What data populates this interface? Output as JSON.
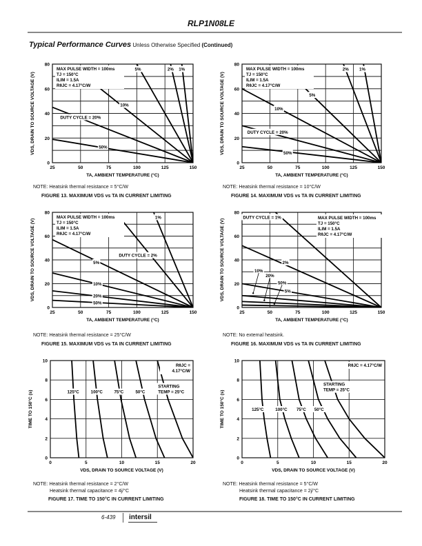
{
  "header": {
    "part_number": "RLP1N08LE",
    "section_title": "Typical Performance Curves",
    "section_subtitle": "Unless Otherwise Specified",
    "section_continued": "(Continued)"
  },
  "footer": {
    "page_number": "6-439",
    "logo_text": "intersil"
  },
  "chart_data": [
    {
      "id": "fig13",
      "type": "line",
      "xlabel": "TA, AMBIENT TEMPERATURE (°C)",
      "ylabel": "VDS, DRAIN TO SOURCE VOLTAGE (V)",
      "xlim": [
        25,
        150
      ],
      "ylim": [
        0,
        80
      ],
      "xticks": [
        "25",
        "50",
        "75",
        "100",
        "125",
        "150"
      ],
      "yticks": [
        "0",
        "20",
        "40",
        "60",
        "80"
      ],
      "grid": true,
      "conditions": [
        "MAX PULSE WIDTH = 100ms",
        "TJ = 150°C",
        "ILIM = 1.5A",
        "RθJC = 4.17°C/W"
      ],
      "series": [
        {
          "name": "1%",
          "x": [
            140,
            150
          ],
          "y": [
            80,
            0
          ]
        },
        {
          "name": "2%",
          "x": [
            130,
            150
          ],
          "y": [
            80,
            0
          ]
        },
        {
          "name": "5%",
          "x": [
            100,
            150
          ],
          "y": [
            80,
            0
          ]
        },
        {
          "name": "10%",
          "x": [
            65,
            150
          ],
          "y": [
            62,
            0
          ]
        },
        {
          "name": "DUTY CYCLE = 20%",
          "x": [
            25,
            150
          ],
          "y": [
            45,
            0
          ]
        },
        {
          "name": "50%",
          "x": [
            25,
            150
          ],
          "y": [
            19,
            0
          ]
        }
      ],
      "labels": [
        {
          "text": "5%",
          "x": 101,
          "y": 76
        },
        {
          "text": "2%",
          "x": 130,
          "y": 76
        },
        {
          "text": "1%",
          "x": 140,
          "y": 76
        },
        {
          "text": "10%",
          "x": 89,
          "y": 47
        },
        {
          "text": "DUTY CYCLE = 20%",
          "x": 50,
          "y": 37
        },
        {
          "text": "50%",
          "x": 70,
          "y": 13
        }
      ],
      "note": "NOTE:  Heatsink thermal resistance = 5°C/W",
      "caption": "FIGURE 13.  MAXIMUM VDS vs TA IN CURRENT LIMITING"
    },
    {
      "id": "fig14",
      "type": "line",
      "xlabel": "TA, AMBIENT TEMPERATURE (°C)",
      "ylabel": "VDS, DRAIN TO SOURCE VOLTAGE (V)",
      "xlim": [
        25,
        150
      ],
      "ylim": [
        0,
        80
      ],
      "xticks": [
        "25",
        "50",
        "75",
        "100",
        "125",
        "150"
      ],
      "yticks": [
        "0",
        "20",
        "40",
        "60",
        "80"
      ],
      "grid": true,
      "conditions": [
        "MAX PULSE WIDTH = 100ms",
        "TJ = 150°C",
        "ILIM = 1.5A",
        "RθJC = 4.17°C/W"
      ],
      "series": [
        {
          "name": "1%",
          "x": [
            134,
            150
          ],
          "y": [
            80,
            0
          ]
        },
        {
          "name": "2%",
          "x": [
            116,
            150
          ],
          "y": [
            80,
            0
          ]
        },
        {
          "name": "5%",
          "x": [
            65,
            150
          ],
          "y": [
            75,
            0
          ]
        },
        {
          "name": "10%",
          "x": [
            25,
            150
          ],
          "y": [
            60,
            0
          ]
        },
        {
          "name": "DUTY CYCLE = 20%",
          "x": [
            25,
            150
          ],
          "y": [
            30,
            0
          ]
        },
        {
          "name": "50%",
          "x": [
            25,
            150
          ],
          "y": [
            13,
            0
          ]
        }
      ],
      "labels": [
        {
          "text": "2%",
          "x": 118,
          "y": 76
        },
        {
          "text": "1%",
          "x": 133,
          "y": 76
        },
        {
          "text": "5%",
          "x": 88,
          "y": 55
        },
        {
          "text": "10%",
          "x": 58,
          "y": 44
        },
        {
          "text": "DUTY CYCLE = 20%",
          "x": 48,
          "y": 25
        },
        {
          "text": "50%",
          "x": 66,
          "y": 8
        }
      ],
      "note": "NOTE:  Heatsink thermal resistance = 10°C/W",
      "caption": "FIGURE 14.  MAXIMUM VDS vs TA IN CURRENT LIMITING"
    },
    {
      "id": "fig15",
      "type": "line",
      "xlabel": "TA, AMBIENT TEMPERATURE (°C)",
      "ylabel": "VDS, DRAIN TO SOURCE VOLTAGE (V)",
      "xlim": [
        25,
        150
      ],
      "ylim": [
        0,
        80
      ],
      "xticks": [
        "25",
        "50",
        "75",
        "100",
        "125",
        "150"
      ],
      "yticks": [
        "0",
        "20",
        "40",
        "60",
        "80"
      ],
      "grid": true,
      "conditions": [
        "MAX PULSE WIDTH = 100ms",
        "TJ = 150°C",
        "ILIM = 1.5A",
        "RθJC = 4.17°C/W"
      ],
      "series": [
        {
          "name": "1%",
          "x": [
            115,
            150
          ],
          "y": [
            80,
            0
          ]
        },
        {
          "name": "DUTY CYCLE = 2%",
          "x": [
            88,
            150
          ],
          "y": [
            72,
            0
          ]
        },
        {
          "name": "5%",
          "x": [
            25,
            150
          ],
          "y": [
            57,
            0
          ]
        },
        {
          "name": "10%",
          "x": [
            25,
            150
          ],
          "y": [
            29,
            0
          ]
        },
        {
          "name": "20%",
          "x": [
            25,
            150
          ],
          "y": [
            14,
            0
          ]
        },
        {
          "name": "50%",
          "x": [
            25,
            150
          ],
          "y": [
            6,
            0
          ]
        }
      ],
      "labels": [
        {
          "text": "1%",
          "x": 119,
          "y": 76
        },
        {
          "text": "DUTY CYCLE = 2%",
          "x": 101,
          "y": 44
        },
        {
          "text": "5%",
          "x": 64,
          "y": 38
        },
        {
          "text": "10%",
          "x": 65,
          "y": 20
        },
        {
          "text": "20%",
          "x": 65,
          "y": 10
        },
        {
          "text": "50%",
          "x": 65,
          "y": 4
        }
      ],
      "note": "NOTE:  Heatsink thermal resistance = 25°C/W",
      "caption": "FIGURE 15.  MAXIMUM VDS vs TA IN CURRENT LIMITING"
    },
    {
      "id": "fig16",
      "type": "line",
      "xlabel": "TA, AMBIENT TEMPERATURE (°C)",
      "ylabel": "VDS, DRAIN TO SOURCE VOLTAGE (V)",
      "xlim": [
        25,
        150
      ],
      "ylim": [
        0,
        80
      ],
      "xticks": [
        "25",
        "50",
        "75",
        "100",
        "125",
        "150"
      ],
      "yticks": [
        "0",
        "20",
        "40",
        "60",
        "80"
      ],
      "grid": true,
      "conditions": [
        "MAX PULSE WIDTH = 100ms",
        "TJ = 150°C",
        "ILIM = 1.5A",
        "RθJC = 4.17°C/W"
      ],
      "series": [
        {
          "name": "DUTY CYCLE = 1%",
          "x": [
            55,
            150
          ],
          "y": [
            80,
            0
          ]
        },
        {
          "name": "2%",
          "x": [
            25,
            150
          ],
          "y": [
            52,
            0
          ]
        },
        {
          "name": "5%",
          "x": [
            25,
            150
          ],
          "y": [
            20,
            0
          ]
        },
        {
          "name": "10%",
          "x": [
            25,
            150
          ],
          "y": [
            10,
            0
          ]
        },
        {
          "name": "20%",
          "x": [
            25,
            150
          ],
          "y": [
            5,
            0
          ]
        },
        {
          "name": "50%",
          "x": [
            25,
            150
          ],
          "y": [
            2,
            0
          ]
        }
      ],
      "labels": [
        {
          "text": "DUTY CYCLE = 1%",
          "x": 43,
          "y": 76
        },
        {
          "text": "2%",
          "x": 64,
          "y": 38
        },
        {
          "text": "10%",
          "x": 40,
          "y": 31
        },
        {
          "text": "20%",
          "x": 50,
          "y": 27
        },
        {
          "text": "50%",
          "x": 61,
          "y": 21
        },
        {
          "text": "5%",
          "x": 66,
          "y": 14
        }
      ],
      "note": "NOTE:  No external heatsink.",
      "caption": "FIGURE 16.  MAXIMUM VDS vs TA IN CURRENT LIMITING"
    },
    {
      "id": "fig17",
      "type": "line",
      "xlabel": "VDS, DRAIN TO SOURCE VOLTAGE (V)",
      "ylabel": "TIME TO 150°C (s)",
      "xlim": [
        0,
        20
      ],
      "ylim": [
        0,
        10
      ],
      "xticks": [
        "0",
        "5",
        "10",
        "15",
        "20"
      ],
      "yticks": [
        "0",
        "2",
        "4",
        "6",
        "8",
        "10"
      ],
      "grid": true,
      "conditions": [
        "RθJC =",
        "4.17°C/W"
      ],
      "series": [
        {
          "name": "125°C",
          "x": [
            3.0,
            3.3,
            3.5,
            3.7,
            4.0
          ],
          "y": [
            10,
            6,
            4,
            2,
            0
          ]
        },
        {
          "name": "100°C",
          "x": [
            6.0,
            6.6,
            7.0,
            7.4,
            8.0
          ],
          "y": [
            10,
            6,
            4,
            2,
            0
          ]
        },
        {
          "name": "75°C",
          "x": [
            9.0,
            9.9,
            10.5,
            11.1,
            12.0
          ],
          "y": [
            10,
            6,
            4,
            2,
            0
          ]
        },
        {
          "name": "50°C",
          "x": [
            12.0,
            13.2,
            14.0,
            14.8,
            16.0
          ],
          "y": [
            10,
            6,
            4,
            2,
            0
          ]
        },
        {
          "name": "STARTING TEMP = 25°C",
          "x": [
            15.0,
            16.5,
            17.5,
            18.5,
            20.0
          ],
          "y": [
            10,
            6,
            4,
            2,
            0
          ]
        }
      ],
      "labels": [
        {
          "text": "125°C",
          "x": 3.2,
          "y": 6.8
        },
        {
          "text": "100°C",
          "x": 6.5,
          "y": 6.8
        },
        {
          "text": "75°C",
          "x": 9.6,
          "y": 6.8
        },
        {
          "text": "50°C",
          "x": 12.6,
          "y": 6.8
        }
      ],
      "starting_label": [
        "STARTING",
        "TEMP = 25°C"
      ],
      "notes": [
        "NOTE: Heatsink thermal resistance = 2°C/W",
        "Heatsink thermal capacitance = 4j/°C"
      ],
      "caption": "FIGURE 17.  TIME TO 150°C IN CURRENT LIMITING"
    },
    {
      "id": "fig18",
      "type": "line",
      "xlabel": "VDS, DRAIN TO SOURCE VOLTAGE (V)",
      "ylabel": "TIME TO 150°C (s)",
      "xlim": [
        0,
        20
      ],
      "ylim": [
        0,
        10
      ],
      "xticks": [
        "0",
        "5",
        "10",
        "15",
        "20"
      ],
      "yticks": [
        "0",
        "2",
        "4",
        "6",
        "8",
        "10"
      ],
      "grid": true,
      "conditions": [
        "RθJC = 4.17°C/W"
      ],
      "series": [
        {
          "name": "125°C",
          "x": [
            2.5,
            2.8,
            3.1,
            3.5,
            4.0
          ],
          "y": [
            10,
            6,
            4,
            2,
            0
          ]
        },
        {
          "name": "100°C",
          "x": [
            4.7,
            5.3,
            6.0,
            6.9,
            8.0
          ],
          "y": [
            10,
            6,
            4,
            2,
            0
          ]
        },
        {
          "name": "75°C",
          "x": [
            7.0,
            8.0,
            9.0,
            10.3,
            12.0
          ],
          "y": [
            10,
            6,
            4,
            2,
            0
          ]
        },
        {
          "name": "50°C",
          "x": [
            9.3,
            10.7,
            12.0,
            13.7,
            16.0
          ],
          "y": [
            10,
            6,
            4,
            2,
            0
          ]
        },
        {
          "name": "STARTING TEMP = 25°C",
          "x": [
            11.6,
            13.4,
            15.0,
            17.2,
            20.0
          ],
          "y": [
            10,
            6,
            4,
            2,
            0
          ]
        }
      ],
      "labels": [
        {
          "text": "125°C",
          "x": 2.2,
          "y": 5.0
        },
        {
          "text": "100°C",
          "x": 5.5,
          "y": 5.0
        },
        {
          "text": "75°C",
          "x": 8.3,
          "y": 5.0
        },
        {
          "text": "50°C",
          "x": 10.8,
          "y": 5.0
        }
      ],
      "starting_label": [
        "STARTING",
        "TEMP = 25°C"
      ],
      "notes": [
        "NOTE: Heatsink thermal resistance = 5°C/W",
        "Heatsink thermal capacitance = 2j/°C"
      ],
      "caption": "FIGURE 18.  TIME TO 150°C IN CURRENT LIMITING"
    }
  ]
}
